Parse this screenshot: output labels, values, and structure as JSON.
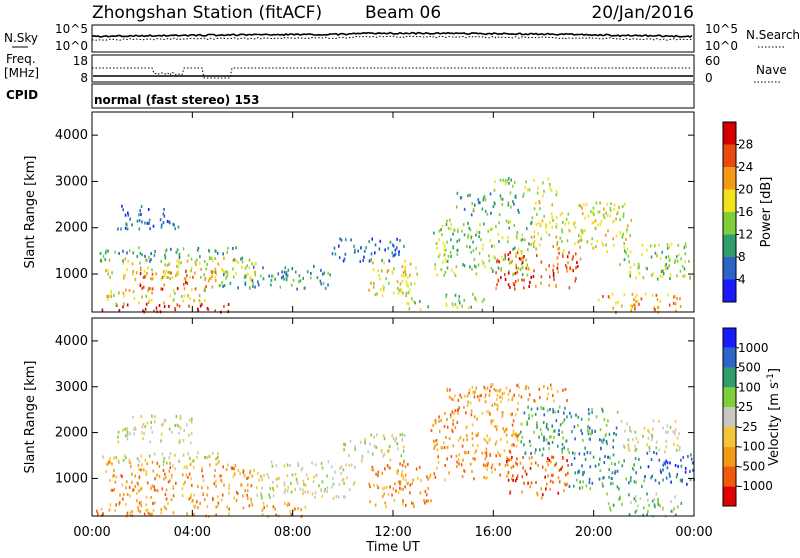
{
  "header": {
    "station": "Zhongshan Station (fitACF)",
    "beam": "Beam 06",
    "date": "20/Jan/2016"
  },
  "top_panels": {
    "nsky_label": "N.Sky",
    "nsearch_label": "N.Search",
    "nsky_tick_hi": "10^5",
    "nsky_tick_lo": "10^0",
    "freq_label_1": "Freq.",
    "freq_label_2": "[MHz]",
    "freq_tick_hi": "18",
    "freq_tick_lo": "8",
    "nave_label": "Nave",
    "nave_tick_hi": "60",
    "nave_tick_lo": "0",
    "cpid_label": "CPID",
    "cpid_text": "normal (fast stereo) 153"
  },
  "chart_data": [
    {
      "type": "heatmap",
      "parameter": "power",
      "ylabel": "Slant Range [km]",
      "ylim": [
        180,
        4500
      ],
      "yticks": [
        1000,
        2000,
        3000,
        4000
      ],
      "xlim_hours": [
        0,
        24
      ],
      "colorbar_label": "Power [dB]",
      "colorbar_ticks": [
        "4",
        "8",
        "12",
        "16",
        "20",
        "24",
        "28"
      ],
      "colorbar_colors": [
        "#1a1aff",
        "#2c64c8",
        "#2e9e6a",
        "#7fcf3c",
        "#f2e21c",
        "#f39a17",
        "#e84a10",
        "#d20000"
      ],
      "regions": [
        {
          "t0": 0.1,
          "t1": 5.5,
          "r0": 200,
          "r1": 380,
          "level": 7
        },
        {
          "t0": 0.5,
          "t1": 4.5,
          "r0": 380,
          "r1": 700,
          "level": 4
        },
        {
          "t0": 0.5,
          "t1": 6.5,
          "r0": 900,
          "r1": 1400,
          "level": 4
        },
        {
          "t0": 1.5,
          "t1": 5.0,
          "r0": 700,
          "r1": 1100,
          "level": 6
        },
        {
          "t0": 0.3,
          "t1": 6.0,
          "r0": 1300,
          "r1": 1600,
          "level": 2
        },
        {
          "t0": 1.0,
          "t1": 3.5,
          "r0": 2000,
          "r1": 2500,
          "level": 1
        },
        {
          "t0": 5.0,
          "t1": 9.5,
          "r0": 700,
          "r1": 1200,
          "level": 2
        },
        {
          "t0": 9.5,
          "t1": 12.5,
          "r0": 1300,
          "r1": 1800,
          "level": 1
        },
        {
          "t0": 11.0,
          "t1": 13.0,
          "r0": 500,
          "r1": 1400,
          "level": 4
        },
        {
          "t0": 12.5,
          "t1": 13.5,
          "r0": 250,
          "r1": 500,
          "level": 3
        },
        {
          "t0": 13.5,
          "t1": 17.5,
          "r0": 1000,
          "r1": 2200,
          "level": 3
        },
        {
          "t0": 14.5,
          "t1": 17.0,
          "r0": 2300,
          "r1": 2800,
          "level": 2
        },
        {
          "t0": 16.0,
          "t1": 19.5,
          "r0": 700,
          "r1": 1500,
          "level": 6
        },
        {
          "t0": 17.5,
          "t1": 21.5,
          "r0": 1500,
          "r1": 2600,
          "level": 4
        },
        {
          "t0": 16.0,
          "t1": 18.5,
          "r0": 2700,
          "r1": 3100,
          "level": 3
        },
        {
          "t0": 20.0,
          "t1": 23.5,
          "r0": 200,
          "r1": 600,
          "level": 5
        },
        {
          "t0": 21.0,
          "t1": 24.0,
          "r0": 900,
          "r1": 1700,
          "level": 3
        },
        {
          "t0": 14.0,
          "t1": 16.0,
          "r0": 250,
          "r1": 600,
          "level": 3
        }
      ]
    },
    {
      "type": "heatmap",
      "parameter": "velocity",
      "ylabel": "Slant Range [km]",
      "ylim": [
        180,
        4500
      ],
      "yticks": [
        1000,
        2000,
        3000,
        4000
      ],
      "xlim_hours": [
        0,
        24
      ],
      "xticks": [
        "00:00",
        "04:00",
        "08:00",
        "12:00",
        "16:00",
        "20:00",
        "00:00"
      ],
      "xlabel": "Time UT",
      "colorbar_label": "Velocity [m s",
      "colorbar_unit_sup": "-1",
      "colorbar_unit_close": "]",
      "colorbar_ticks": [
        "-1000",
        "-500",
        "-100",
        "-25",
        "25",
        "100",
        "500",
        "1000"
      ],
      "colorbar_colors": [
        "#e30000",
        "#f05a0a",
        "#f39a17",
        "#f6c43a",
        "#c8c8c0",
        "#7fcf3c",
        "#2e9e6a",
        "#2c64c8",
        "#1a1aff"
      ],
      "regions": [
        {
          "t0": 0.1,
          "t1": 8.5,
          "r0": 200,
          "r1": 500,
          "level": 2
        },
        {
          "t0": 0.5,
          "t1": 6.5,
          "r0": 500,
          "r1": 1400,
          "level": 2
        },
        {
          "t0": 0.3,
          "t1": 5.0,
          "r0": 1300,
          "r1": 1600,
          "level": 4
        },
        {
          "t0": 1.0,
          "t1": 4.0,
          "r0": 1800,
          "r1": 2400,
          "level": 4
        },
        {
          "t0": 6.5,
          "t1": 10.5,
          "r0": 600,
          "r1": 1400,
          "level": 4
        },
        {
          "t0": 10.0,
          "t1": 12.5,
          "r0": 1400,
          "r1": 2000,
          "level": 4
        },
        {
          "t0": 11.0,
          "t1": 13.5,
          "r0": 400,
          "r1": 1400,
          "level": 2
        },
        {
          "t0": 13.5,
          "t1": 17.0,
          "r0": 1000,
          "r1": 2400,
          "level": 2
        },
        {
          "t0": 14.0,
          "t1": 17.0,
          "r0": 2400,
          "r1": 3000,
          "level": 2
        },
        {
          "t0": 16.5,
          "t1": 19.0,
          "r0": 600,
          "r1": 1500,
          "level": 1
        },
        {
          "t0": 17.0,
          "t1": 21.0,
          "r0": 1500,
          "r1": 2600,
          "level": 6
        },
        {
          "t0": 19.0,
          "t1": 22.0,
          "r0": 800,
          "r1": 1500,
          "level": 6
        },
        {
          "t0": 20.5,
          "t1": 23.5,
          "r0": 200,
          "r1": 700,
          "level": 5
        },
        {
          "t0": 22.0,
          "t1": 24.0,
          "r0": 900,
          "r1": 1600,
          "level": 7
        },
        {
          "t0": 21.0,
          "t1": 23.5,
          "r0": 1600,
          "r1": 2300,
          "level": 4
        },
        {
          "t0": 15.0,
          "t1": 19.0,
          "r0": 2700,
          "r1": 3100,
          "level": 2
        }
      ]
    }
  ]
}
